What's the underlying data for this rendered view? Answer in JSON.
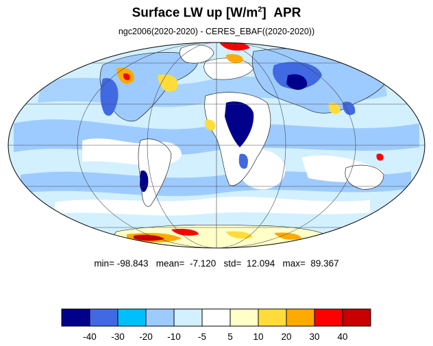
{
  "title": {
    "main": "Surface LW up [W/m",
    "superscript": "2",
    "close": "]",
    "month": "APR"
  },
  "subtitle": "ngc2006(2020-2020) - CERES_EBAF((2020-2020))",
  "stats": {
    "min_label": "min=",
    "min": "-98.843",
    "mean_label": "mean=",
    "mean": "-7.120",
    "std_label": "std=",
    "std": "12.094",
    "max_label": "max=",
    "max": "89.367"
  },
  "chart_data": {
    "type": "heatmap",
    "projection": "mollweide",
    "grid": true,
    "colorbar": {
      "orientation": "horizontal",
      "placement": "bottom",
      "colors": [
        "#00008b",
        "#4169e1",
        "#00bfff",
        "#9ecbff",
        "#d2f0ff",
        "#ffffff",
        "#ffffc8",
        "#ffdc3c",
        "#ffaa00",
        "#ff0000",
        "#c80000"
      ],
      "tick_labels": [
        "-40",
        "-30",
        "-20",
        "-10",
        "-5",
        "5",
        "10",
        "20",
        "30",
        "40"
      ],
      "levels": [
        -40,
        -30,
        -20,
        -10,
        -5,
        5,
        10,
        20,
        30,
        40
      ]
    }
  }
}
